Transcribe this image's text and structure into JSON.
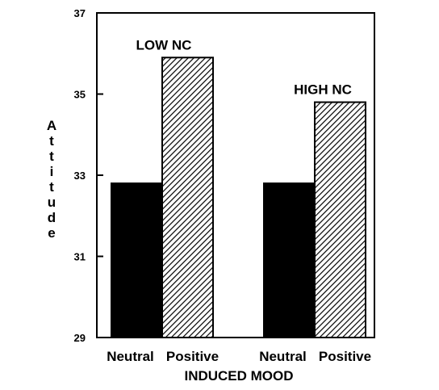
{
  "chart_data": {
    "type": "bar",
    "ylabel": "Attitude",
    "xlabel": "INDUCED MOOD",
    "ylim": [
      29,
      37
    ],
    "yticks": [
      29,
      31,
      33,
      35,
      37
    ],
    "grid": false,
    "groups": [
      {
        "label": "LOW NC",
        "bars": [
          {
            "category": "Neutral",
            "value": 32.8,
            "fill": "solid-black"
          },
          {
            "category": "Positive",
            "value": 35.9,
            "fill": "diagonal-hatch"
          }
        ]
      },
      {
        "label": "HIGH NC",
        "bars": [
          {
            "category": "Neutral",
            "value": 32.8,
            "fill": "solid-black"
          },
          {
            "category": "Positive",
            "value": 34.8,
            "fill": "diagonal-hatch"
          }
        ]
      }
    ]
  }
}
